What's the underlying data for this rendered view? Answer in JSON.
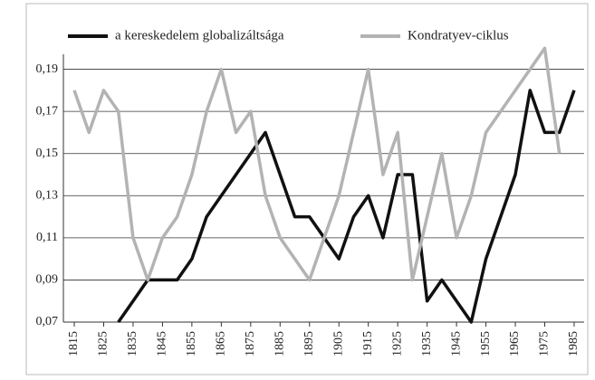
{
  "chart_data": {
    "type": "line",
    "x": [
      1815,
      1820,
      1825,
      1830,
      1835,
      1840,
      1845,
      1850,
      1855,
      1860,
      1865,
      1870,
      1875,
      1880,
      1885,
      1890,
      1895,
      1900,
      1905,
      1910,
      1915,
      1920,
      1925,
      1930,
      1935,
      1940,
      1945,
      1950,
      1955,
      1960,
      1965,
      1970,
      1975,
      1980,
      1985
    ],
    "series": [
      {
        "name": "a kereskedelem globalizáltsága",
        "color": "#111111",
        "values": [
          null,
          null,
          null,
          0.07,
          0.08,
          0.09,
          0.09,
          0.09,
          0.1,
          0.12,
          0.13,
          0.14,
          0.15,
          0.16,
          0.14,
          0.12,
          0.12,
          0.11,
          0.1,
          0.12,
          0.13,
          0.11,
          0.14,
          0.14,
          0.08,
          0.09,
          0.08,
          0.07,
          0.1,
          0.12,
          0.14,
          0.18,
          0.16,
          0.16,
          0.18
        ]
      },
      {
        "name": "Kondratyev-ciklus",
        "color": "#b3b3b3",
        "values": [
          0.18,
          0.16,
          0.18,
          0.17,
          0.11,
          0.09,
          0.11,
          0.12,
          0.14,
          0.17,
          0.19,
          0.16,
          0.17,
          0.13,
          0.11,
          0.1,
          0.09,
          0.11,
          0.13,
          0.16,
          0.19,
          0.14,
          0.16,
          0.09,
          0.12,
          0.15,
          0.11,
          0.13,
          0.16,
          0.17,
          0.18,
          0.19,
          0.2,
          0.15,
          null
        ]
      }
    ],
    "xlim": [
      1811.3,
      1988.4
    ],
    "xticks": [
      1815,
      1825,
      1835,
      1845,
      1855,
      1865,
      1875,
      1885,
      1895,
      1905,
      1915,
      1925,
      1935,
      1945,
      1955,
      1965,
      1975,
      1985
    ],
    "ylim": [
      0.07,
      0.21
    ],
    "yticks": [
      {
        "value": 0.07,
        "label": "0,07"
      },
      {
        "value": 0.09,
        "label": "0,09"
      },
      {
        "value": 0.11,
        "label": "0,11"
      },
      {
        "value": 0.13,
        "label": "0,13"
      },
      {
        "value": 0.15,
        "label": "0,15"
      },
      {
        "value": 0.17,
        "label": "0,17"
      },
      {
        "value": 0.19,
        "label": "0,19"
      }
    ],
    "grid": true,
    "legend": "top"
  }
}
